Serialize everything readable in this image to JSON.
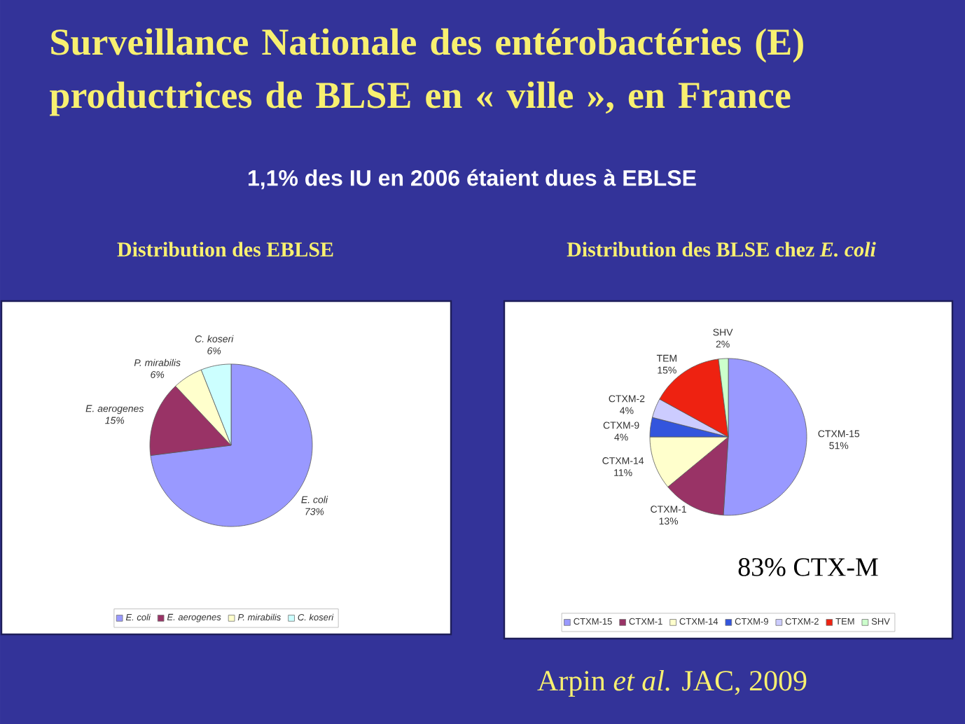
{
  "chart_data": [
    {
      "type": "other",
      "title": "Surveillance Nationale des entérobactéries (E) productrices de BLSE en « ville », en France",
      "subtitle": "1,1% des IU en 2006 étaient dues à EBLSE",
      "annotations": [
        "Arpin *et al.* JAC, 2009"
      ]
    },
    {
      "type": "pie",
      "title": "Distribution des EBLSE",
      "categories": [
        "E. coli",
        "E. aerogenes",
        "P. mirabilis",
        "C. koseri"
      ],
      "values": [
        73,
        15,
        6,
        6
      ],
      "value_labels": [
        "73%",
        "15%",
        "6%",
        "6%"
      ],
      "colors": [
        "#9999ff",
        "#993366",
        "#ffffcc",
        "#ccffff"
      ],
      "legend": "bottom"
    },
    {
      "type": "pie",
      "title": "Distribution des BLSE chez *E. coli*",
      "categories": [
        "CTXM-15",
        "CTXM-1",
        "CTXM-14",
        "CTXM-9",
        "CTXM-2",
        "TEM",
        "SHV"
      ],
      "values": [
        51,
        13,
        11,
        4,
        4,
        15,
        2
      ],
      "value_labels": [
        "51%",
        "13%",
        "11%",
        "4%",
        "4%",
        "15%",
        "2%"
      ],
      "colors": [
        "#9999ff",
        "#993366",
        "#ffffcc",
        "#3355dd",
        "#ccccff",
        "#ee2211",
        "#ccffcc"
      ],
      "legend": "bottom",
      "annotations": [
        "83% CTX-M"
      ]
    }
  ]
}
